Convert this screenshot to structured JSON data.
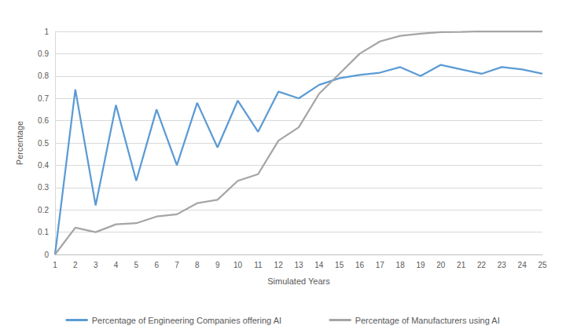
{
  "chart_data": {
    "type": "line",
    "x_label": "Simulated Years",
    "y_label": "Percentage",
    "categories": [
      "1",
      "2",
      "3",
      "4",
      "5",
      "6",
      "7",
      "8",
      "9",
      "10",
      "11",
      "12",
      "13",
      "14",
      "15",
      "16",
      "17",
      "18",
      "19",
      "20",
      "21",
      "22",
      "23",
      "24",
      "25"
    ],
    "series": [
      {
        "name": "Percentage of Engineering Companies offering AI",
        "color": "#5b9bd5",
        "values": [
          0,
          0.74,
          0.22,
          0.67,
          0.33,
          0.65,
          0.4,
          0.68,
          0.48,
          0.69,
          0.55,
          0.73,
          0.7,
          0.76,
          0.79,
          0.805,
          0.815,
          0.84,
          0.8,
          0.85,
          0.83,
          0.81,
          0.84,
          0.83,
          0.81
        ]
      },
      {
        "name": "Percentage of Manufacturers using AI",
        "color": "#a5a5a5",
        "values": [
          0,
          0.12,
          0.1,
          0.135,
          0.14,
          0.17,
          0.18,
          0.23,
          0.245,
          0.33,
          0.36,
          0.51,
          0.57,
          0.72,
          0.81,
          0.9,
          0.955,
          0.98,
          0.99,
          0.997,
          0.998,
          1.0,
          1.0,
          1.0,
          1.0
        ]
      }
    ],
    "ylim": [
      0,
      1
    ],
    "yticks": [
      0,
      0.1,
      0.2,
      0.3,
      0.4,
      0.5,
      0.6,
      0.7,
      0.8,
      0.9,
      1
    ],
    "grid": true,
    "legend": "bottom",
    "marker": "none"
  }
}
